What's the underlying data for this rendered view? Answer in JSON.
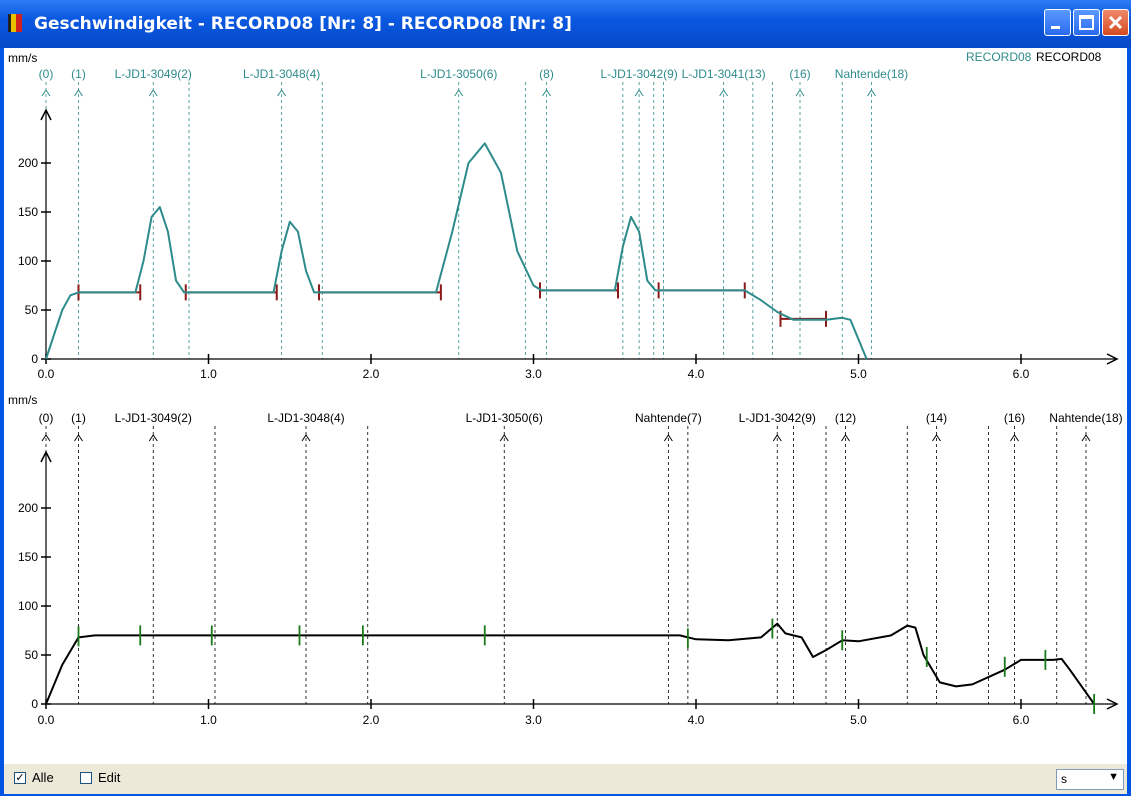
{
  "window": {
    "title": "Geschwindigkeit - RECORD08 [Nr:  8] - RECORD08 [Nr:  8]"
  },
  "legend": {
    "entry1": "RECORD08",
    "entry2": "RECORD08"
  },
  "statusbar": {
    "alle_label": "Alle",
    "alle_checked": true,
    "edit_label": "Edit",
    "edit_checked": false,
    "unit_value": "s"
  },
  "colors": {
    "teal": "#2e8b8b",
    "black": "#000000",
    "dark_red": "#8b1a1a",
    "green": "#1a7a1a"
  },
  "chart_data": [
    {
      "type": "line",
      "ylabel": "mm/s",
      "xlim": [
        0,
        6.5
      ],
      "ylim": [
        0,
        230
      ],
      "xticks": [
        "0.0",
        "1.0",
        "2.0",
        "3.0",
        "4.0",
        "5.0",
        "6.0"
      ],
      "yticks": [
        "0",
        "50",
        "100",
        "150",
        "200"
      ],
      "series": [
        {
          "name": "RECORD08",
          "color": "#2e8b8b",
          "x": [
            0,
            0.05,
            0.1,
            0.15,
            0.2,
            0.55,
            0.6,
            0.65,
            0.7,
            0.75,
            0.8,
            0.85,
            0.9,
            1.4,
            1.45,
            1.5,
            1.55,
            1.6,
            1.65,
            1.7,
            2.4,
            2.5,
            2.6,
            2.7,
            2.8,
            2.9,
            3.0,
            3.05,
            3.5,
            3.55,
            3.6,
            3.65,
            3.7,
            3.75,
            3.8,
            4.3,
            4.4,
            4.5,
            4.6,
            4.8,
            4.9,
            4.95,
            5.0,
            5.05
          ],
          "y": [
            0,
            25,
            50,
            65,
            68,
            68,
            100,
            145,
            155,
            130,
            80,
            68,
            68,
            68,
            110,
            140,
            130,
            90,
            68,
            68,
            68,
            130,
            200,
            220,
            190,
            110,
            75,
            70,
            70,
            115,
            145,
            130,
            80,
            70,
            70,
            70,
            60,
            48,
            40,
            40,
            42,
            40,
            20,
            0
          ]
        }
      ],
      "markers": [
        {
          "label": "(0)",
          "x": 0.0
        },
        {
          "label": "(1)",
          "x": 0.2
        },
        {
          "label": "L-JD1-3049(2)",
          "x": 0.66
        },
        {
          "label": "",
          "x": 0.88
        },
        {
          "label": "L-JD1-3048(4)",
          "x": 1.45
        },
        {
          "label": "",
          "x": 1.7
        },
        {
          "label": "L-JD1-3050(6)",
          "x": 2.54
        },
        {
          "label": "",
          "x": 2.95
        },
        {
          "label": "(8)",
          "x": 3.08
        },
        {
          "label": "",
          "x": 3.55
        },
        {
          "label": "L-JD1-3042(9)",
          "x": 3.65
        },
        {
          "label": "",
          "x": 3.74
        },
        {
          "label": "",
          "x": 3.8
        },
        {
          "label": "L-JD1-3041(13)",
          "x": 4.17
        },
        {
          "label": "",
          "x": 4.35
        },
        {
          "label": "",
          "x": 4.47
        },
        {
          "label": "(16)",
          "x": 4.64
        },
        {
          "label": "",
          "x": 4.9
        },
        {
          "label": "Nahtende(18)",
          "x": 5.08
        }
      ],
      "segments": [
        {
          "x1": 0.2,
          "x2": 0.58,
          "y": 68
        },
        {
          "x1": 0.86,
          "x2": 1.42,
          "y": 68
        },
        {
          "x1": 1.68,
          "x2": 2.43,
          "y": 68
        },
        {
          "x1": 3.04,
          "x2": 3.52,
          "y": 70
        },
        {
          "x1": 3.77,
          "x2": 4.3,
          "y": 70
        },
        {
          "x1": 4.52,
          "x2": 4.8,
          "y": 41
        }
      ]
    },
    {
      "type": "line",
      "ylabel": "mm/s",
      "xlim": [
        0,
        6.5
      ],
      "ylim": [
        0,
        230
      ],
      "xticks": [
        "0.0",
        "1.0",
        "2.0",
        "3.0",
        "4.0",
        "5.0",
        "6.0"
      ],
      "yticks": [
        "0",
        "50",
        "100",
        "150",
        "200"
      ],
      "series": [
        {
          "name": "RECORD08",
          "color": "#000000",
          "x": [
            0,
            0.1,
            0.2,
            0.3,
            3.9,
            4.0,
            4.2,
            4.4,
            4.5,
            4.55,
            4.65,
            4.72,
            4.8,
            4.9,
            5.0,
            5.2,
            5.3,
            5.35,
            5.4,
            5.5,
            5.6,
            5.7,
            5.9,
            6.0,
            6.2,
            6.25,
            6.3,
            6.45
          ],
          "y": [
            0,
            40,
            68,
            70,
            70,
            66,
            65,
            68,
            82,
            72,
            68,
            48,
            55,
            65,
            64,
            70,
            80,
            78,
            50,
            22,
            18,
            20,
            35,
            45,
            45,
            46,
            35,
            0
          ]
        }
      ],
      "markers": [
        {
          "label": "(0)",
          "x": 0.0
        },
        {
          "label": "(1)",
          "x": 0.2
        },
        {
          "label": "L-JD1-3049(2)",
          "x": 0.66
        },
        {
          "label": "",
          "x": 1.04
        },
        {
          "label": "L-JD1-3048(4)",
          "x": 1.6
        },
        {
          "label": "",
          "x": 1.98
        },
        {
          "label": "L-JD1-3050(6)",
          "x": 2.82
        },
        {
          "label": "Nahtende(7)",
          "x": 3.83
        },
        {
          "label": "",
          "x": 3.95
        },
        {
          "label": "L-JD1-3042(9)",
          "x": 4.5
        },
        {
          "label": "",
          "x": 4.6
        },
        {
          "label": "",
          "x": 4.8
        },
        {
          "label": "(12)",
          "x": 4.92
        },
        {
          "label": "",
          "x": 5.3
        },
        {
          "label": "(14)",
          "x": 5.48
        },
        {
          "label": "",
          "x": 5.8
        },
        {
          "label": "(16)",
          "x": 5.96
        },
        {
          "label": "",
          "x": 6.22
        },
        {
          "label": "Nahtende(18)",
          "x": 6.4
        }
      ],
      "ticks": [
        {
          "x": 0.2,
          "y": 69
        },
        {
          "x": 0.58,
          "y": 70
        },
        {
          "x": 1.02,
          "y": 70
        },
        {
          "x": 1.56,
          "y": 70
        },
        {
          "x": 1.95,
          "y": 70
        },
        {
          "x": 2.7,
          "y": 70
        },
        {
          "x": 3.95,
          "y": 67
        },
        {
          "x": 4.47,
          "y": 77
        },
        {
          "x": 4.9,
          "y": 65
        },
        {
          "x": 5.42,
          "y": 48
        },
        {
          "x": 5.9,
          "y": 38
        },
        {
          "x": 6.15,
          "y": 45
        },
        {
          "x": 6.45,
          "y": 0
        }
      ]
    }
  ]
}
